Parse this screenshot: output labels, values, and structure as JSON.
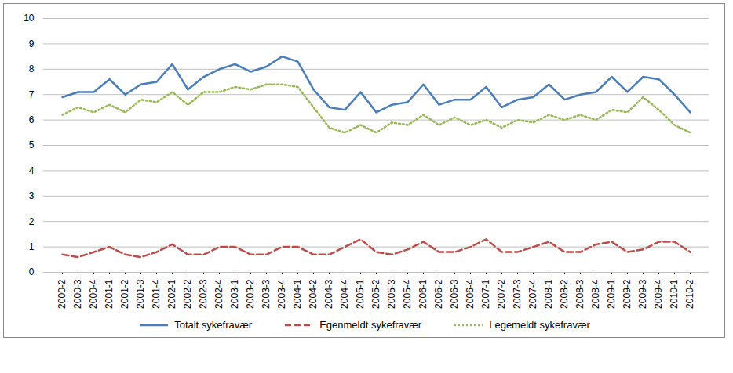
{
  "chart_data": {
    "type": "line",
    "categories": [
      "2000-2",
      "2000-3",
      "2000-4",
      "2001-1",
      "2001-2",
      "2001-3",
      "2001-4",
      "2002-1",
      "2002-2",
      "2002-3",
      "2002-4",
      "2003-1",
      "2003-2",
      "2003-3",
      "2003-4",
      "2004-1",
      "2004-2",
      "2004-3",
      "2004-4",
      "2005-1",
      "2005-2",
      "2005-3",
      "2005-4",
      "2006-1",
      "2006-2",
      "2006-3",
      "2006-4",
      "2007-1",
      "2007-2",
      "2007-3",
      "2007-4",
      "2008-1",
      "2008-2",
      "2008-3",
      "2008-4",
      "2009-1",
      "2009-2",
      "2009-3",
      "2009-4",
      "2010-1",
      "2010-2"
    ],
    "series": [
      {
        "name": "Totalt sykefravær",
        "color": "#4a7ebb",
        "line_style": "solid",
        "values": [
          6.9,
          7.1,
          7.1,
          7.6,
          7.0,
          7.4,
          7.5,
          8.2,
          7.2,
          7.7,
          8.0,
          8.2,
          7.9,
          8.1,
          8.5,
          8.3,
          7.2,
          6.5,
          6.4,
          7.1,
          6.3,
          6.6,
          6.7,
          7.4,
          6.6,
          6.8,
          6.8,
          7.3,
          6.5,
          6.8,
          6.9,
          7.4,
          6.8,
          7.0,
          7.1,
          7.7,
          7.1,
          7.7,
          7.6,
          7.0,
          6.3
        ]
      },
      {
        "name": "Egenmeldt sykefravær",
        "color": "#be4b48",
        "line_style": "dashed",
        "values": [
          0.7,
          0.6,
          0.8,
          1.0,
          0.7,
          0.6,
          0.8,
          1.1,
          0.7,
          0.7,
          1.0,
          1.0,
          0.7,
          0.7,
          1.0,
          1.0,
          0.7,
          0.7,
          1.0,
          1.3,
          0.8,
          0.7,
          0.9,
          1.2,
          0.8,
          0.8,
          1.0,
          1.3,
          0.8,
          0.8,
          1.0,
          1.2,
          0.8,
          0.8,
          1.1,
          1.2,
          0.8,
          0.9,
          1.2,
          1.2,
          0.8
        ]
      },
      {
        "name": "Legemeldt sykefravær",
        "color": "#98b954",
        "line_style": "dotted",
        "values": [
          6.2,
          6.5,
          6.3,
          6.6,
          6.3,
          6.8,
          6.7,
          7.1,
          6.6,
          7.1,
          7.1,
          7.3,
          7.2,
          7.4,
          7.4,
          7.3,
          6.5,
          5.7,
          5.5,
          5.8,
          5.5,
          5.9,
          5.8,
          6.2,
          5.8,
          6.1,
          5.8,
          6.0,
          5.7,
          6.0,
          5.9,
          6.2,
          6.0,
          6.2,
          6.0,
          6.4,
          6.3,
          6.9,
          6.4,
          5.8,
          5.5
        ]
      }
    ],
    "ylim": [
      0,
      10
    ],
    "yticks": [
      0,
      1,
      2,
      3,
      4,
      5,
      6,
      7,
      8,
      9,
      10
    ],
    "grid": true,
    "legend": "bottom"
  }
}
